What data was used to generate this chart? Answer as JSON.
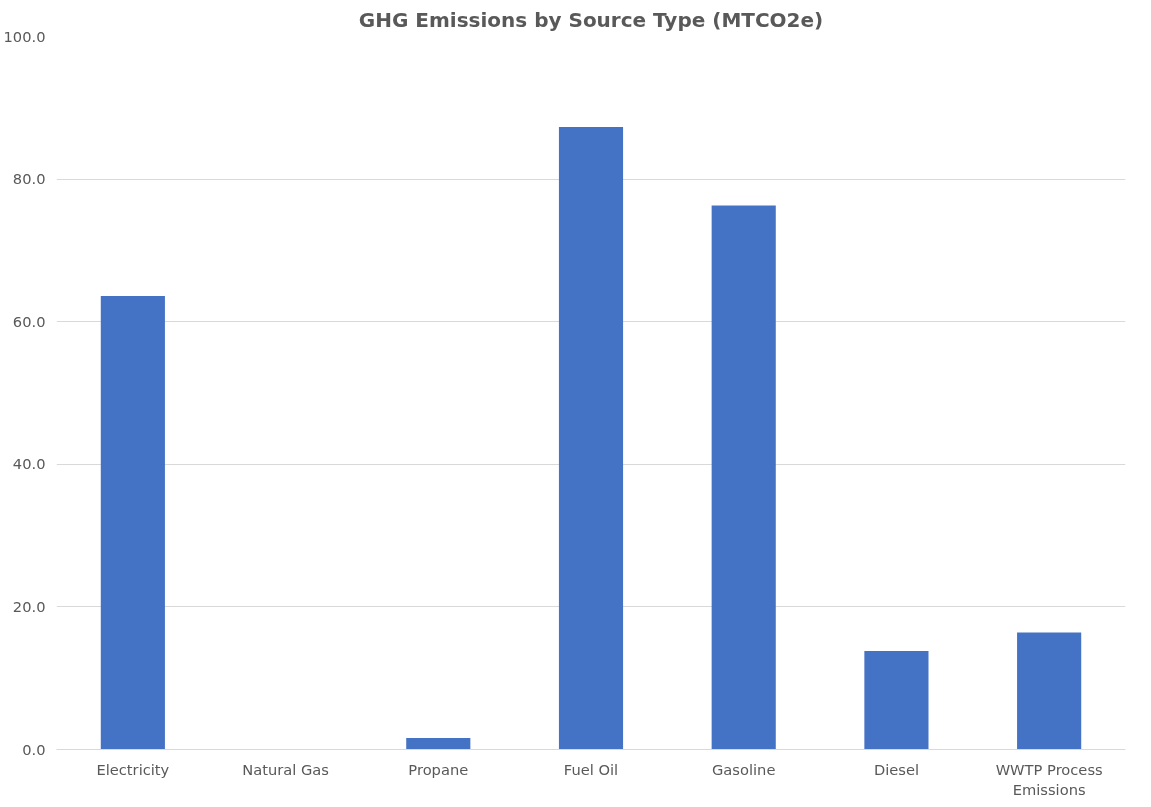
{
  "chart_data": {
    "type": "bar",
    "title": "GHG Emissions by Source Type (MTCO2e)",
    "categories": [
      "Electricity",
      "Natural Gas",
      "Propane",
      "Fuel Oil",
      "Gasoline",
      "Diesel",
      "WWTP Process Emissions"
    ],
    "values": [
      63.6,
      0,
      1.6,
      87.3,
      76.3,
      13.8,
      16.4
    ],
    "color": "#4472c4",
    "ylim": [
      0,
      100
    ],
    "yticks": [
      {
        "value": 0,
        "label": "0.0"
      },
      {
        "value": 20,
        "label": "20.0"
      },
      {
        "value": 40,
        "label": "40.0"
      },
      {
        "value": 60,
        "label": "60.0"
      },
      {
        "value": 80,
        "label": "80.0"
      },
      {
        "value": 100,
        "label": "100.0"
      }
    ],
    "grid": "y"
  }
}
